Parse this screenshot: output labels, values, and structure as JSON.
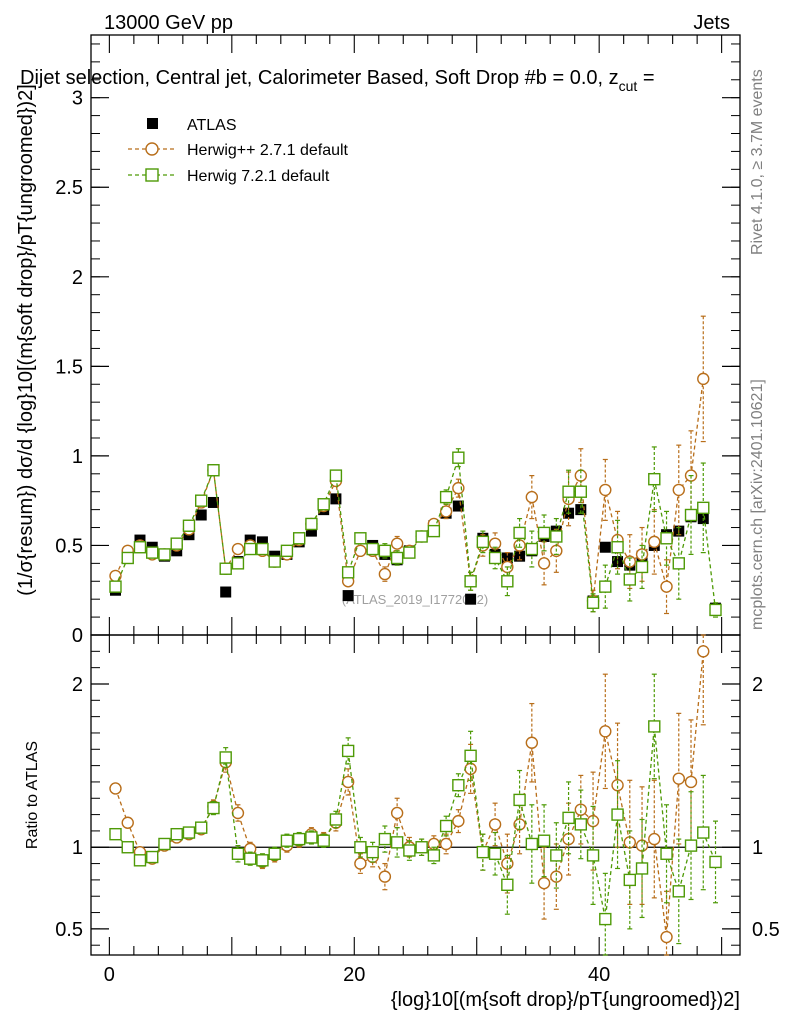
{
  "header": {
    "left": "13000 GeV pp",
    "right": "Jets",
    "title": "Dijet selection, Central jet, Calorimeter Based, Soft Drop #b = 0.0, z",
    "title_tail": " = ",
    "title_sub": "cut"
  },
  "side_labels": {
    "rivet": "Rivet 4.1.0, ≥ 3.7M events",
    "mcplots": "mcplots.cern.ch [arXiv:2401.10621]"
  },
  "watermark": "(ATLAS_2019_I1772062)",
  "chart_data": [
    {
      "type": "scatter",
      "panel": "main",
      "ylabel": "(1/σ{resum}) dσ/d {log}10[(m{soft drop}/pT{ungroomed})2]",
      "ylim": [
        0,
        3.35
      ],
      "xlim": [
        -1.5,
        51.5
      ],
      "yticks": [
        0,
        0.5,
        1,
        1.5,
        2,
        2.5,
        3
      ],
      "ytick_labels": [
        "0",
        "0.5",
        "1",
        "1.5",
        "2",
        "2.5",
        "3"
      ],
      "legend": [
        "ATLAS",
        "Herwig++ 2.7.1 default",
        "Herwig 7.2.1 default"
      ],
      "legend_position": "top-left",
      "series": [
        {
          "name": "ATLAS",
          "color": "#000000",
          "marker": "filled-square",
          "x": [
            0.5,
            1.5,
            2.5,
            3.5,
            4.5,
            5.5,
            6.5,
            7.5,
            8.5,
            9.5,
            10.5,
            11.5,
            12.5,
            13.5,
            14.5,
            15.5,
            16.5,
            17.5,
            18.5,
            19.5,
            20.5,
            21.5,
            22.5,
            23.5,
            24.5,
            25.5,
            26.5,
            27.5,
            28.5,
            29.5,
            30.5,
            31.5,
            32.5,
            33.5,
            34.5,
            35.5,
            36.5,
            37.5,
            38.5,
            39.5,
            40.5,
            41.5,
            42.5,
            43.5,
            44.5,
            45.5,
            46.5,
            47.5,
            48.5,
            49.5
          ],
          "y": [
            0.25,
            0.43,
            0.53,
            0.49,
            0.44,
            0.47,
            0.56,
            0.67,
            0.74,
            0.24,
            0.41,
            0.53,
            0.52,
            0.44,
            0.45,
            0.52,
            0.58,
            0.7,
            0.76,
            0.22,
            0.54,
            0.5,
            0.45,
            0.42,
            0.47,
            0.55,
            0.61,
            0.68,
            0.72,
            0.2,
            0.54,
            0.45,
            0.43,
            0.44,
            0.47,
            0.55,
            0.58,
            0.68,
            0.7,
            0.19,
            0.49,
            0.41,
            0.39,
            0.44,
            0.5,
            0.56,
            0.58,
            0.66,
            0.65,
            0.15
          ],
          "err": [
            0.02,
            0.02,
            0.02,
            0.02,
            0.02,
            0.02,
            0.02,
            0.02,
            0.02,
            0.02,
            0.02,
            0.02,
            0.02,
            0.02,
            0.02,
            0.02,
            0.02,
            0.02,
            0.02,
            0.02,
            0.02,
            0.02,
            0.02,
            0.02,
            0.02,
            0.02,
            0.02,
            0.02,
            0.02,
            0.02,
            0.02,
            0.02,
            0.02,
            0.02,
            0.02,
            0.02,
            0.02,
            0.02,
            0.02,
            0.02,
            0.02,
            0.02,
            0.02,
            0.02,
            0.02,
            0.02,
            0.02,
            0.02,
            0.02,
            0.02
          ]
        },
        {
          "name": "Herwig++ 2.7.1 default",
          "color": "#b86e1a",
          "marker": "open-circle",
          "x": [
            0.5,
            1.5,
            2.5,
            3.5,
            4.5,
            5.5,
            6.5,
            7.5,
            8.5,
            9.5,
            10.5,
            11.5,
            12.5,
            13.5,
            14.5,
            15.5,
            16.5,
            17.5,
            18.5,
            19.5,
            20.5,
            21.5,
            22.5,
            23.5,
            24.5,
            25.5,
            26.5,
            27.5,
            28.5,
            29.5,
            30.5,
            31.5,
            32.5,
            33.5,
            34.5,
            35.5,
            36.5,
            37.5,
            38.5,
            39.5,
            40.5,
            41.5,
            42.5,
            43.5,
            44.5,
            45.5,
            46.5,
            47.5,
            48.5
          ],
          "y": [
            0.33,
            0.47,
            0.5,
            0.45,
            0.45,
            0.5,
            0.59,
            0.74,
            0.92,
            0.37,
            0.48,
            0.5,
            0.47,
            0.41,
            0.45,
            0.53,
            0.62,
            0.72,
            0.86,
            0.3,
            0.47,
            0.47,
            0.34,
            0.51,
            0.47,
            0.55,
            0.62,
            0.69,
            0.82,
            0.3,
            0.5,
            0.51,
            0.38,
            0.5,
            0.77,
            0.4,
            0.47,
            0.76,
            0.89,
            0.19,
            0.81,
            0.53,
            0.41,
            0.45,
            0.52,
            0.27,
            0.81,
            0.89,
            1.43
          ],
          "err": [
            0.02,
            0.02,
            0.02,
            0.02,
            0.02,
            0.02,
            0.02,
            0.02,
            0.02,
            0.02,
            0.02,
            0.02,
            0.02,
            0.02,
            0.02,
            0.02,
            0.02,
            0.02,
            0.02,
            0.02,
            0.03,
            0.03,
            0.04,
            0.04,
            0.03,
            0.03,
            0.03,
            0.04,
            0.05,
            0.05,
            0.06,
            0.06,
            0.08,
            0.08,
            0.12,
            0.12,
            0.12,
            0.15,
            0.15,
            0.06,
            0.17,
            0.16,
            0.15,
            0.15,
            0.18,
            0.15,
            0.25,
            0.25,
            0.35
          ]
        },
        {
          "name": "Herwig 7.2.1 default",
          "color": "#4e9a06",
          "marker": "open-square",
          "x": [
            0.5,
            1.5,
            2.5,
            3.5,
            4.5,
            5.5,
            6.5,
            7.5,
            8.5,
            9.5,
            10.5,
            11.5,
            12.5,
            13.5,
            14.5,
            15.5,
            16.5,
            17.5,
            18.5,
            19.5,
            20.5,
            21.5,
            22.5,
            23.5,
            24.5,
            25.5,
            26.5,
            27.5,
            28.5,
            29.5,
            30.5,
            31.5,
            32.5,
            33.5,
            34.5,
            35.5,
            36.5,
            37.5,
            38.5,
            39.5,
            40.5,
            41.5,
            42.5,
            43.5,
            44.5,
            45.5,
            46.5,
            47.5,
            48.5,
            49.5
          ],
          "y": [
            0.27,
            0.43,
            0.49,
            0.46,
            0.45,
            0.51,
            0.61,
            0.75,
            0.92,
            0.37,
            0.4,
            0.48,
            0.48,
            0.41,
            0.47,
            0.54,
            0.62,
            0.73,
            0.89,
            0.35,
            0.54,
            0.48,
            0.47,
            0.43,
            0.46,
            0.55,
            0.58,
            0.77,
            0.99,
            0.3,
            0.52,
            0.43,
            0.3,
            0.57,
            0.48,
            0.57,
            0.55,
            0.8,
            0.8,
            0.18,
            0.27,
            0.49,
            0.31,
            0.38,
            0.87,
            0.54,
            0.4,
            0.67,
            0.71,
            0.14
          ],
          "err": [
            0.02,
            0.02,
            0.02,
            0.02,
            0.02,
            0.02,
            0.02,
            0.02,
            0.02,
            0.02,
            0.02,
            0.02,
            0.02,
            0.02,
            0.02,
            0.02,
            0.02,
            0.02,
            0.02,
            0.02,
            0.03,
            0.03,
            0.04,
            0.04,
            0.03,
            0.03,
            0.03,
            0.04,
            0.05,
            0.05,
            0.06,
            0.06,
            0.08,
            0.08,
            0.1,
            0.1,
            0.1,
            0.12,
            0.12,
            0.05,
            0.12,
            0.15,
            0.12,
            0.12,
            0.18,
            0.15,
            0.2,
            0.22,
            0.25,
            0.04
          ]
        }
      ]
    },
    {
      "type": "scatter",
      "panel": "ratio",
      "ylabel": "Ratio to ATLAS",
      "xlabel": "{log}10[(m{soft drop}/pT{ungroomed})2]",
      "ylim": [
        0.34,
        2.3
      ],
      "xlim": [
        -1.5,
        51.5
      ],
      "yticks": [
        0.5,
        1,
        2
      ],
      "ytick_labels": [
        "0.5",
        "1",
        "2"
      ],
      "xticks": [
        0,
        20,
        40
      ],
      "xtick_labels": [
        "0",
        "20",
        "40"
      ],
      "reference_line": 1,
      "series": [
        {
          "name": "Herwig++ 2.7.1 default",
          "color": "#b86e1a",
          "marker": "open-circle",
          "x": [
            0.5,
            1.5,
            2.5,
            3.5,
            4.5,
            5.5,
            6.5,
            7.5,
            8.5,
            9.5,
            10.5,
            11.5,
            12.5,
            13.5,
            14.5,
            15.5,
            16.5,
            17.5,
            18.5,
            19.5,
            20.5,
            21.5,
            22.5,
            23.5,
            24.5,
            25.5,
            26.5,
            27.5,
            28.5,
            29.5,
            30.5,
            31.5,
            32.5,
            33.5,
            34.5,
            35.5,
            36.5,
            37.5,
            38.5,
            39.5,
            40.5,
            41.5,
            42.5,
            43.5,
            44.5,
            45.5,
            46.5,
            47.5,
            48.5
          ],
          "y": [
            1.36,
            1.15,
            0.97,
            0.93,
            1.01,
            1.06,
            1.08,
            1.11,
            1.25,
            1.52,
            1.21,
            0.99,
            0.91,
            0.95,
            1.01,
            1.04,
            1.08,
            1.05,
            1.15,
            1.4,
            0.9,
            0.94,
            0.82,
            1.21,
            1.0,
            1.0,
            1.02,
            1.02,
            1.16,
            1.48,
            0.97,
            1.14,
            0.9,
            1.14,
            1.64,
            0.78,
            0.82,
            1.05,
            1.23,
            1.16,
            1.71,
            1.38,
            1.03,
            1.01,
            1.05,
            0.45,
            1.42,
            1.4,
            2.2
          ],
          "err": [
            0.03,
            0.03,
            0.03,
            0.03,
            0.03,
            0.03,
            0.03,
            0.03,
            0.04,
            0.06,
            0.05,
            0.04,
            0.04,
            0.04,
            0.04,
            0.04,
            0.04,
            0.04,
            0.05,
            0.08,
            0.06,
            0.06,
            0.08,
            0.09,
            0.06,
            0.05,
            0.05,
            0.06,
            0.07,
            0.15,
            0.11,
            0.13,
            0.18,
            0.18,
            0.24,
            0.22,
            0.2,
            0.22,
            0.21,
            0.3,
            0.35,
            0.38,
            0.38,
            0.36,
            0.36,
            0.28,
            0.4,
            0.38,
            0.45
          ]
        },
        {
          "name": "Herwig 7.2.1 default",
          "color": "#4e9a06",
          "marker": "open-square",
          "x": [
            0.5,
            1.5,
            2.5,
            3.5,
            4.5,
            5.5,
            6.5,
            7.5,
            8.5,
            9.5,
            10.5,
            11.5,
            12.5,
            13.5,
            14.5,
            15.5,
            16.5,
            17.5,
            18.5,
            19.5,
            20.5,
            21.5,
            22.5,
            23.5,
            24.5,
            25.5,
            26.5,
            27.5,
            28.5,
            29.5,
            30.5,
            31.5,
            32.5,
            33.5,
            34.5,
            35.5,
            36.5,
            37.5,
            38.5,
            39.5,
            40.5,
            41.5,
            42.5,
            43.5,
            44.5,
            45.5,
            46.5,
            47.5,
            48.5,
            49.5
          ],
          "y": [
            1.08,
            1.0,
            0.92,
            0.94,
            1.02,
            1.08,
            1.09,
            1.12,
            1.24,
            1.55,
            0.96,
            0.93,
            0.92,
            0.96,
            1.04,
            1.05,
            1.06,
            1.04,
            1.17,
            1.59,
            1.0,
            0.97,
            1.05,
            1.03,
            0.98,
            1.0,
            0.95,
            1.13,
            1.38,
            1.56,
            0.97,
            0.96,
            0.77,
            1.29,
            1.02,
            1.04,
            0.95,
            1.18,
            1.14,
            0.95,
            0.56,
            1.2,
            0.8,
            0.87,
            1.74,
            0.96,
            0.73,
            1.01,
            1.09,
            0.91
          ],
          "err": [
            0.03,
            0.03,
            0.03,
            0.03,
            0.03,
            0.03,
            0.03,
            0.03,
            0.04,
            0.06,
            0.05,
            0.04,
            0.04,
            0.04,
            0.04,
            0.04,
            0.04,
            0.04,
            0.05,
            0.08,
            0.06,
            0.06,
            0.08,
            0.09,
            0.06,
            0.05,
            0.05,
            0.06,
            0.07,
            0.15,
            0.11,
            0.13,
            0.18,
            0.18,
            0.24,
            0.22,
            0.2,
            0.22,
            0.21,
            0.3,
            0.28,
            0.33,
            0.3,
            0.3,
            0.32,
            0.3,
            0.32,
            0.33,
            0.35,
            0.25
          ]
        }
      ]
    }
  ]
}
